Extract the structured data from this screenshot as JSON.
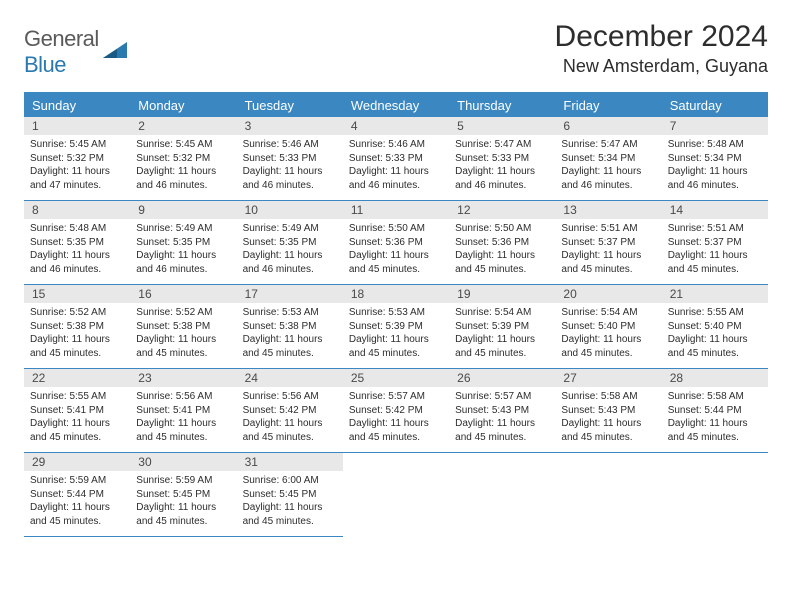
{
  "logo": {
    "text1": "General",
    "text2": "Blue"
  },
  "header": {
    "title": "December 2024",
    "location": "New Amsterdam, Guyana"
  },
  "colors": {
    "header_bg": "#3a87c1",
    "header_text": "#ffffff",
    "day_num_bg": "#e8e8e8",
    "grid_line": "#3a87c1",
    "logo_gray": "#5a5a5a",
    "logo_blue": "#2a7ab0"
  },
  "day_headers": [
    "Sunday",
    "Monday",
    "Tuesday",
    "Wednesday",
    "Thursday",
    "Friday",
    "Saturday"
  ],
  "days": [
    {
      "n": "1",
      "sr": "5:45 AM",
      "ss": "5:32 PM",
      "dl": "11 hours and 47 minutes."
    },
    {
      "n": "2",
      "sr": "5:45 AM",
      "ss": "5:32 PM",
      "dl": "11 hours and 46 minutes."
    },
    {
      "n": "3",
      "sr": "5:46 AM",
      "ss": "5:33 PM",
      "dl": "11 hours and 46 minutes."
    },
    {
      "n": "4",
      "sr": "5:46 AM",
      "ss": "5:33 PM",
      "dl": "11 hours and 46 minutes."
    },
    {
      "n": "5",
      "sr": "5:47 AM",
      "ss": "5:33 PM",
      "dl": "11 hours and 46 minutes."
    },
    {
      "n": "6",
      "sr": "5:47 AM",
      "ss": "5:34 PM",
      "dl": "11 hours and 46 minutes."
    },
    {
      "n": "7",
      "sr": "5:48 AM",
      "ss": "5:34 PM",
      "dl": "11 hours and 46 minutes."
    },
    {
      "n": "8",
      "sr": "5:48 AM",
      "ss": "5:35 PM",
      "dl": "11 hours and 46 minutes."
    },
    {
      "n": "9",
      "sr": "5:49 AM",
      "ss": "5:35 PM",
      "dl": "11 hours and 46 minutes."
    },
    {
      "n": "10",
      "sr": "5:49 AM",
      "ss": "5:35 PM",
      "dl": "11 hours and 46 minutes."
    },
    {
      "n": "11",
      "sr": "5:50 AM",
      "ss": "5:36 PM",
      "dl": "11 hours and 45 minutes."
    },
    {
      "n": "12",
      "sr": "5:50 AM",
      "ss": "5:36 PM",
      "dl": "11 hours and 45 minutes."
    },
    {
      "n": "13",
      "sr": "5:51 AM",
      "ss": "5:37 PM",
      "dl": "11 hours and 45 minutes."
    },
    {
      "n": "14",
      "sr": "5:51 AM",
      "ss": "5:37 PM",
      "dl": "11 hours and 45 minutes."
    },
    {
      "n": "15",
      "sr": "5:52 AM",
      "ss": "5:38 PM",
      "dl": "11 hours and 45 minutes."
    },
    {
      "n": "16",
      "sr": "5:52 AM",
      "ss": "5:38 PM",
      "dl": "11 hours and 45 minutes."
    },
    {
      "n": "17",
      "sr": "5:53 AM",
      "ss": "5:38 PM",
      "dl": "11 hours and 45 minutes."
    },
    {
      "n": "18",
      "sr": "5:53 AM",
      "ss": "5:39 PM",
      "dl": "11 hours and 45 minutes."
    },
    {
      "n": "19",
      "sr": "5:54 AM",
      "ss": "5:39 PM",
      "dl": "11 hours and 45 minutes."
    },
    {
      "n": "20",
      "sr": "5:54 AM",
      "ss": "5:40 PM",
      "dl": "11 hours and 45 minutes."
    },
    {
      "n": "21",
      "sr": "5:55 AM",
      "ss": "5:40 PM",
      "dl": "11 hours and 45 minutes."
    },
    {
      "n": "22",
      "sr": "5:55 AM",
      "ss": "5:41 PM",
      "dl": "11 hours and 45 minutes."
    },
    {
      "n": "23",
      "sr": "5:56 AM",
      "ss": "5:41 PM",
      "dl": "11 hours and 45 minutes."
    },
    {
      "n": "24",
      "sr": "5:56 AM",
      "ss": "5:42 PM",
      "dl": "11 hours and 45 minutes."
    },
    {
      "n": "25",
      "sr": "5:57 AM",
      "ss": "5:42 PM",
      "dl": "11 hours and 45 minutes."
    },
    {
      "n": "26",
      "sr": "5:57 AM",
      "ss": "5:43 PM",
      "dl": "11 hours and 45 minutes."
    },
    {
      "n": "27",
      "sr": "5:58 AM",
      "ss": "5:43 PM",
      "dl": "11 hours and 45 minutes."
    },
    {
      "n": "28",
      "sr": "5:58 AM",
      "ss": "5:44 PM",
      "dl": "11 hours and 45 minutes."
    },
    {
      "n": "29",
      "sr": "5:59 AM",
      "ss": "5:44 PM",
      "dl": "11 hours and 45 minutes."
    },
    {
      "n": "30",
      "sr": "5:59 AM",
      "ss": "5:45 PM",
      "dl": "11 hours and 45 minutes."
    },
    {
      "n": "31",
      "sr": "6:00 AM",
      "ss": "5:45 PM",
      "dl": "11 hours and 45 minutes."
    }
  ],
  "labels": {
    "sunrise": "Sunrise: ",
    "sunset": "Sunset: ",
    "daylight": "Daylight: "
  },
  "trailing_empty": 4
}
